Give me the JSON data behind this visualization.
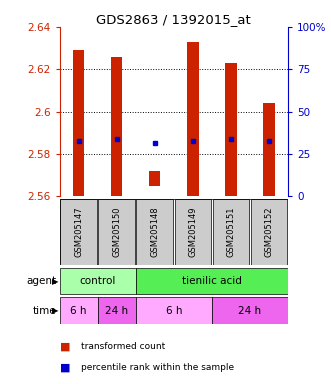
{
  "title": "GDS2863 / 1392015_at",
  "samples": [
    "GSM205147",
    "GSM205150",
    "GSM205148",
    "GSM205149",
    "GSM205151",
    "GSM205152"
  ],
  "bar_bottoms": [
    2.56,
    2.56,
    2.565,
    2.56,
    2.56,
    2.56
  ],
  "bar_tops": [
    2.629,
    2.626,
    2.572,
    2.633,
    2.623,
    2.604
  ],
  "blue_values": [
    2.586,
    2.587,
    2.585,
    2.586,
    2.587,
    2.586
  ],
  "ylim": [
    2.56,
    2.64
  ],
  "yticks_left": [
    2.56,
    2.58,
    2.6,
    2.62,
    2.64
  ],
  "yticks_right": [
    0,
    25,
    50,
    75,
    100
  ],
  "ytick_right_labels": [
    "0",
    "25",
    "50",
    "75",
    "100%"
  ],
  "bar_color": "#cc2200",
  "blue_color": "#0000cc",
  "sample_box_color": "#cccccc",
  "agent_row": [
    {
      "label": "control",
      "start": 0,
      "end": 2,
      "color": "#aaffaa"
    },
    {
      "label": "tienilic acid",
      "start": 2,
      "end": 6,
      "color": "#55ee55"
    }
  ],
  "time_row": [
    {
      "label": "6 h",
      "start": 0,
      "end": 1,
      "color": "#ffaaff"
    },
    {
      "label": "24 h",
      "start": 1,
      "end": 2,
      "color": "#ee66ee"
    },
    {
      "label": "6 h",
      "start": 2,
      "end": 4,
      "color": "#ffaaff"
    },
    {
      "label": "24 h",
      "start": 4,
      "end": 6,
      "color": "#ee66ee"
    }
  ],
  "legend_items": [
    {
      "label": "transformed count",
      "color": "#cc2200"
    },
    {
      "label": "percentile rank within the sample",
      "color": "#0000cc"
    }
  ],
  "left_labels": [
    "agent",
    "time"
  ],
  "arrow_color": "#444444"
}
